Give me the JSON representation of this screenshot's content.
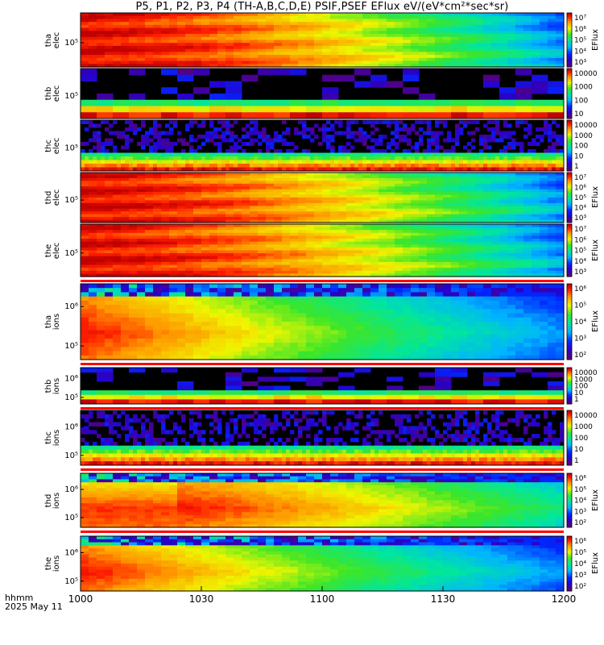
{
  "title": "P5, P1, P2, P3, P4 (TH-A,B,C,D,E) PSIF,PSEF EFlux eV/(eV*cm²*sec*sr)",
  "time_axis": {
    "label_line1": "hhmm",
    "label_line2": "2025 May 11",
    "ticks": [
      "1000",
      "1030",
      "1100",
      "1130",
      "1200"
    ],
    "range_minutes": [
      0,
      120
    ]
  },
  "colorbar_unit": "EFlux",
  "chart_data": [
    {
      "type": "heatmap",
      "panel": "tha elec",
      "ylabel": [
        "tha",
        "elec"
      ],
      "ytick": "10⁵",
      "cbar_ticks": [
        "10⁷",
        "10⁶",
        "10⁵",
        "10⁴",
        "10³"
      ],
      "cbar_log_range": [
        2.6,
        7.1
      ],
      "show_unit": true,
      "profile": "elec_dense",
      "colors": {
        "bar": "#ff0000"
      }
    },
    {
      "type": "heatmap",
      "panel": "thb elec",
      "ylabel": [
        "thb",
        "elec"
      ],
      "ytick": "10⁵",
      "cbar_ticks": [
        "10000",
        "1000",
        "100",
        "10"
      ],
      "cbar_log_range": [
        0.6,
        4.6
      ],
      "show_unit": false,
      "profile": "elec_sparse",
      "colors": {
        "bar": "#ff0000"
      }
    },
    {
      "type": "heatmap",
      "panel": "thc elec",
      "ylabel": [
        "thc",
        "elec"
      ],
      "ytick": "10⁵",
      "cbar_ticks": [
        "10000",
        "1000",
        "100",
        "10",
        "1"
      ],
      "cbar_log_range": [
        -0.2,
        4.6
      ],
      "show_unit": false,
      "profile": "elec_noisy",
      "colors": {
        "bar": "#ff0000"
      }
    },
    {
      "type": "heatmap",
      "panel": "thd elec",
      "ylabel": [
        "thd",
        "elec"
      ],
      "ytick": "10⁵",
      "cbar_ticks": [
        "10⁷",
        "10⁶",
        "10⁵",
        "10⁴",
        "10³"
      ],
      "cbar_log_range": [
        2.6,
        7.1
      ],
      "show_unit": true,
      "profile": "elec_dense",
      "colors": {
        "bar": "#ff0000"
      }
    },
    {
      "type": "heatmap",
      "panel": "the elec",
      "ylabel": [
        "the",
        "elec"
      ],
      "ytick": "10⁵",
      "cbar_ticks": [
        "10⁷",
        "10⁶",
        "10⁵",
        "10⁴",
        "10³"
      ],
      "cbar_log_range": [
        2.6,
        7.1
      ],
      "show_unit": true,
      "profile": "elec_dense",
      "colors": {
        "bar": "#ff0000"
      }
    },
    {
      "type": "heatmap",
      "panel": "tha ions",
      "ylabel": [
        "tha",
        "ions"
      ],
      "yticks": [
        "10⁵",
        "10⁶"
      ],
      "cbar_ticks": [
        "10⁶",
        "10⁵",
        "10⁴",
        "10³",
        "10²"
      ],
      "cbar_log_range": [
        1.6,
        6.6
      ],
      "show_unit": true,
      "profile": "ions_dense",
      "colors": {
        "bar": "#ff0000"
      }
    },
    {
      "type": "heatmap",
      "panel": "thb ions",
      "ylabel": [
        "thb",
        "ions"
      ],
      "yticks": [
        "10⁵",
        "10⁶"
      ],
      "cbar_ticks": [
        "10000",
        "1000",
        "100",
        "10",
        "1"
      ],
      "cbar_log_range": [
        -0.2,
        4.6
      ],
      "show_unit": false,
      "profile": "ions_sparse",
      "colors": {
        "bar": "#ff0000"
      }
    },
    {
      "type": "heatmap",
      "panel": "thc ions",
      "ylabel": [
        "thc",
        "ions"
      ],
      "yticks": [
        "10⁵",
        "10⁶"
      ],
      "cbar_ticks": [
        "10000",
        "1000",
        "100",
        "10",
        "1"
      ],
      "cbar_log_range": [
        -0.2,
        4.6
      ],
      "show_unit": false,
      "profile": "ions_noisy",
      "colors": {
        "bar": "#ff0000"
      }
    },
    {
      "type": "heatmap",
      "panel": "thd ions",
      "ylabel": [
        "thd",
        "ions"
      ],
      "yticks": [
        "10⁵",
        "10⁶"
      ],
      "cbar_ticks": [
        "10⁶",
        "10⁵",
        "10⁴",
        "10³",
        "10²"
      ],
      "cbar_log_range": [
        1.6,
        6.6
      ],
      "show_unit": true,
      "profile": "ions_dense2",
      "colors": {
        "bar": "#ff0000"
      }
    },
    {
      "type": "heatmap",
      "panel": "the ions",
      "ylabel": [
        "the",
        "ions"
      ],
      "yticks": [
        "10⁵",
        "10⁶"
      ],
      "cbar_ticks": [
        "10⁶",
        "10⁵",
        "10⁴",
        "10³",
        "10²"
      ],
      "cbar_log_range": [
        1.6,
        6.6
      ],
      "show_unit": true,
      "profile": "ions_dense",
      "colors": {
        "bar": "#ff0000"
      }
    }
  ]
}
